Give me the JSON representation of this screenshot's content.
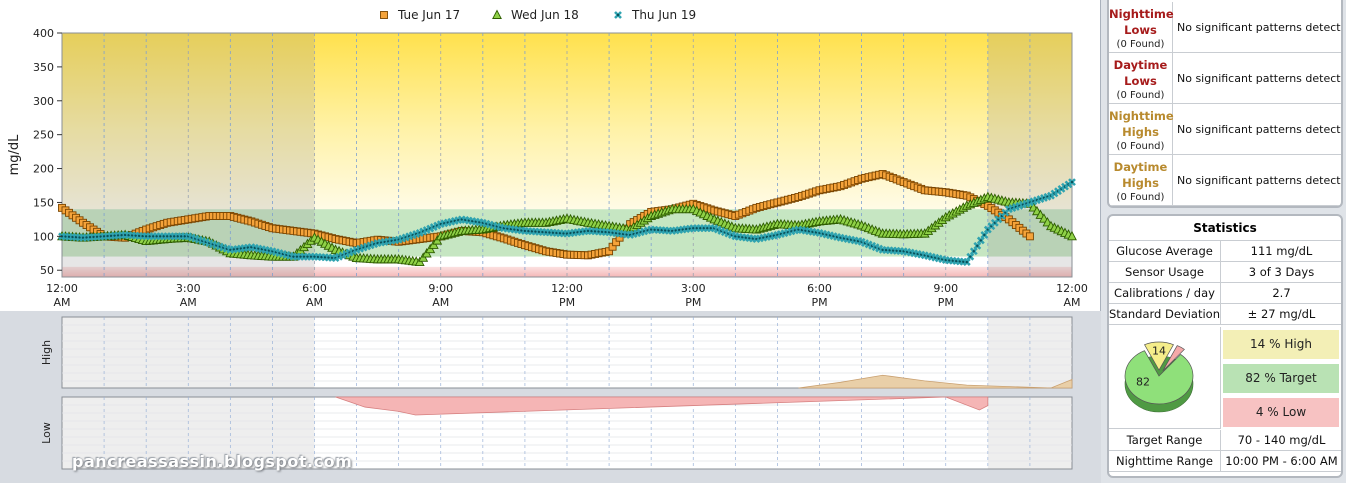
{
  "chart_data": {
    "type": "scatter",
    "ylabel": "mg/dL",
    "ylim": [
      40,
      400
    ],
    "yticks": [
      50,
      100,
      150,
      200,
      250,
      300,
      350,
      400
    ],
    "xlim": [
      0,
      24
    ],
    "xticks": [
      {
        "hour": 0,
        "line1": "12:00",
        "line2": "AM"
      },
      {
        "hour": 3,
        "line1": "3:00",
        "line2": "AM"
      },
      {
        "hour": 6,
        "line1": "6:00",
        "line2": "AM"
      },
      {
        "hour": 9,
        "line1": "9:00",
        "line2": "AM"
      },
      {
        "hour": 12,
        "line1": "12:00",
        "line2": "PM"
      },
      {
        "hour": 15,
        "line1": "3:00",
        "line2": "PM"
      },
      {
        "hour": 18,
        "line1": "6:00",
        "line2": "PM"
      },
      {
        "hour": 21,
        "line1": "9:00",
        "line2": "PM"
      },
      {
        "hour": 24,
        "line1": "12:00",
        "line2": "AM"
      }
    ],
    "target_range": [
      70,
      140
    ],
    "low_threshold": 55,
    "legend_position": "top",
    "series": [
      {
        "name": "Tue Jun 17",
        "marker": "square",
        "color": "#f5a33a",
        "edge": "#7a4500",
        "x": [
          0,
          0.5,
          1,
          1.5,
          2,
          2.5,
          3,
          3.5,
          4,
          4.5,
          5,
          5.5,
          6,
          6.5,
          7,
          7.5,
          8,
          8.5,
          9,
          9.5,
          10,
          10.5,
          11,
          11.5,
          12,
          12.5,
          13,
          13.5,
          14,
          14.5,
          15,
          15.5,
          16,
          16.5,
          17,
          17.5,
          18,
          18.5,
          19,
          19.5,
          20,
          20.5,
          21,
          21.5,
          22,
          22.5,
          23
        ],
        "y": [
          142,
          120,
          100,
          98,
          110,
          120,
          125,
          130,
          130,
          122,
          112,
          108,
          104,
          96,
          90,
          95,
          92,
          96,
          100,
          108,
          106,
          97,
          87,
          78,
          73,
          72,
          78,
          118,
          136,
          140,
          148,
          138,
          130,
          142,
          150,
          158,
          168,
          174,
          185,
          192,
          180,
          168,
          165,
          160,
          145,
          125,
          100
        ]
      },
      {
        "name": "Wed Jun 18",
        "marker": "triangle",
        "color": "#8fd147",
        "edge": "#2e5d00",
        "x": [
          0,
          0.5,
          1,
          1.5,
          2,
          2.5,
          3,
          3.5,
          4,
          4.5,
          5,
          5.5,
          6,
          6.5,
          7,
          7.5,
          8,
          8.5,
          9,
          9.5,
          10,
          10.5,
          11,
          11.5,
          12,
          12.5,
          13,
          13.5,
          14,
          14.5,
          15,
          15.5,
          16,
          16.5,
          17,
          17.5,
          18,
          18.5,
          19,
          19.5,
          20,
          20.5,
          21,
          21.5,
          22,
          22.5,
          23,
          23.5,
          24
        ],
        "y": [
          100,
          98,
          100,
          102,
          93,
          96,
          98,
          92,
          75,
          72,
          70,
          70,
          98,
          80,
          68,
          66,
          66,
          62,
          100,
          108,
          110,
          116,
          120,
          120,
          126,
          120,
          115,
          110,
          130,
          140,
          140,
          125,
          112,
          110,
          118,
          116,
          122,
          125,
          116,
          104,
          103,
          104,
          128,
          145,
          158,
          150,
          148,
          115,
          100
        ]
      },
      {
        "name": "Thu Jun 19",
        "marker": "cross",
        "color": "#2fa3b0",
        "edge": "#0a4f58",
        "x": [
          0,
          0.5,
          1,
          1.5,
          2,
          2.5,
          3,
          3.5,
          4,
          4.5,
          5,
          5.5,
          6,
          6.5,
          7,
          7.5,
          8,
          8.5,
          9,
          9.5,
          10,
          10.5,
          11,
          11.5,
          12,
          12.5,
          13,
          13.5,
          14,
          14.5,
          15,
          15.5,
          16,
          16.5,
          17,
          17.5,
          18,
          18.5,
          19,
          19.5,
          20,
          20.5,
          21,
          21.5,
          22,
          22.5,
          23,
          23.5,
          24
        ],
        "y": [
          100,
          98,
          100,
          102,
          100,
          100,
          100,
          90,
          80,
          84,
          78,
          70,
          70,
          68,
          80,
          90,
          95,
          105,
          118,
          125,
          120,
          112,
          108,
          106,
          104,
          108,
          106,
          102,
          110,
          108,
          112,
          112,
          100,
          96,
          102,
          110,
          105,
          98,
          92,
          80,
          78,
          72,
          65,
          62,
          110,
          140,
          150,
          160,
          180
        ]
      }
    ],
    "high_panel": {
      "ylabel": "High",
      "x": [
        17.5,
        18.5,
        19.5,
        20.5,
        21.5,
        23.5,
        24
      ],
      "y": [
        0,
        0.08,
        0.18,
        0.1,
        0.04,
        0,
        0.12
      ]
    },
    "low_panel": {
      "ylabel": "Low",
      "x": [
        6.5,
        7.2,
        8,
        8.4,
        21,
        21.8,
        22
      ],
      "y": [
        0,
        0.14,
        0.2,
        0.25,
        0,
        0.18,
        0.12
      ]
    }
  },
  "patterns": [
    {
      "title_line1": "Nighttime",
      "title_line2": "Lows",
      "found": "(0 Found)",
      "message": "No significant patterns detected",
      "color": "#a61b1b"
    },
    {
      "title_line1": "Daytime",
      "title_line2": "Lows",
      "found": "(0 Found)",
      "message": "No significant patterns detected",
      "color": "#a61b1b"
    },
    {
      "title_line1": "Nighttime",
      "title_line2": "Highs",
      "found": "(0 Found)",
      "message": "No significant patterns detected",
      "color": "#b88a2e"
    },
    {
      "title_line1": "Daytime",
      "title_line2": "Highs",
      "found": "(0 Found)",
      "message": "No significant patterns detected",
      "color": "#b88a2e"
    }
  ],
  "statistics": {
    "title": "Statistics",
    "rows": [
      {
        "label": "Glucose Average",
        "value": "111 mg/dL"
      },
      {
        "label": "Sensor Usage",
        "value": "3 of 3 Days"
      },
      {
        "label": "Calibrations / day",
        "value": "2.7"
      },
      {
        "label": "Standard Deviation",
        "value": "± 27 mg/dL"
      }
    ],
    "pie": [
      {
        "label": "82",
        "value": 82,
        "color": "#8fe07a"
      },
      {
        "label": "14",
        "value": 14,
        "color": "#f5ed8a"
      },
      {
        "label": "",
        "value": 4,
        "color": "#f5a9a9"
      }
    ],
    "percent_rows": [
      {
        "text": "14 % High",
        "color": "#f3efb6"
      },
      {
        "text": "82 % Target",
        "color": "#b9e2b4"
      },
      {
        "text": "4 % Low",
        "color": "#f7c2c2"
      }
    ],
    "bottom_rows": [
      {
        "label": "Target Range",
        "value": "70 - 140 mg/dL"
      },
      {
        "label": "Nighttime Range",
        "value": "10:00 PM - 6:00 AM"
      }
    ]
  },
  "watermark": "pancreassassin.blogspot.com"
}
